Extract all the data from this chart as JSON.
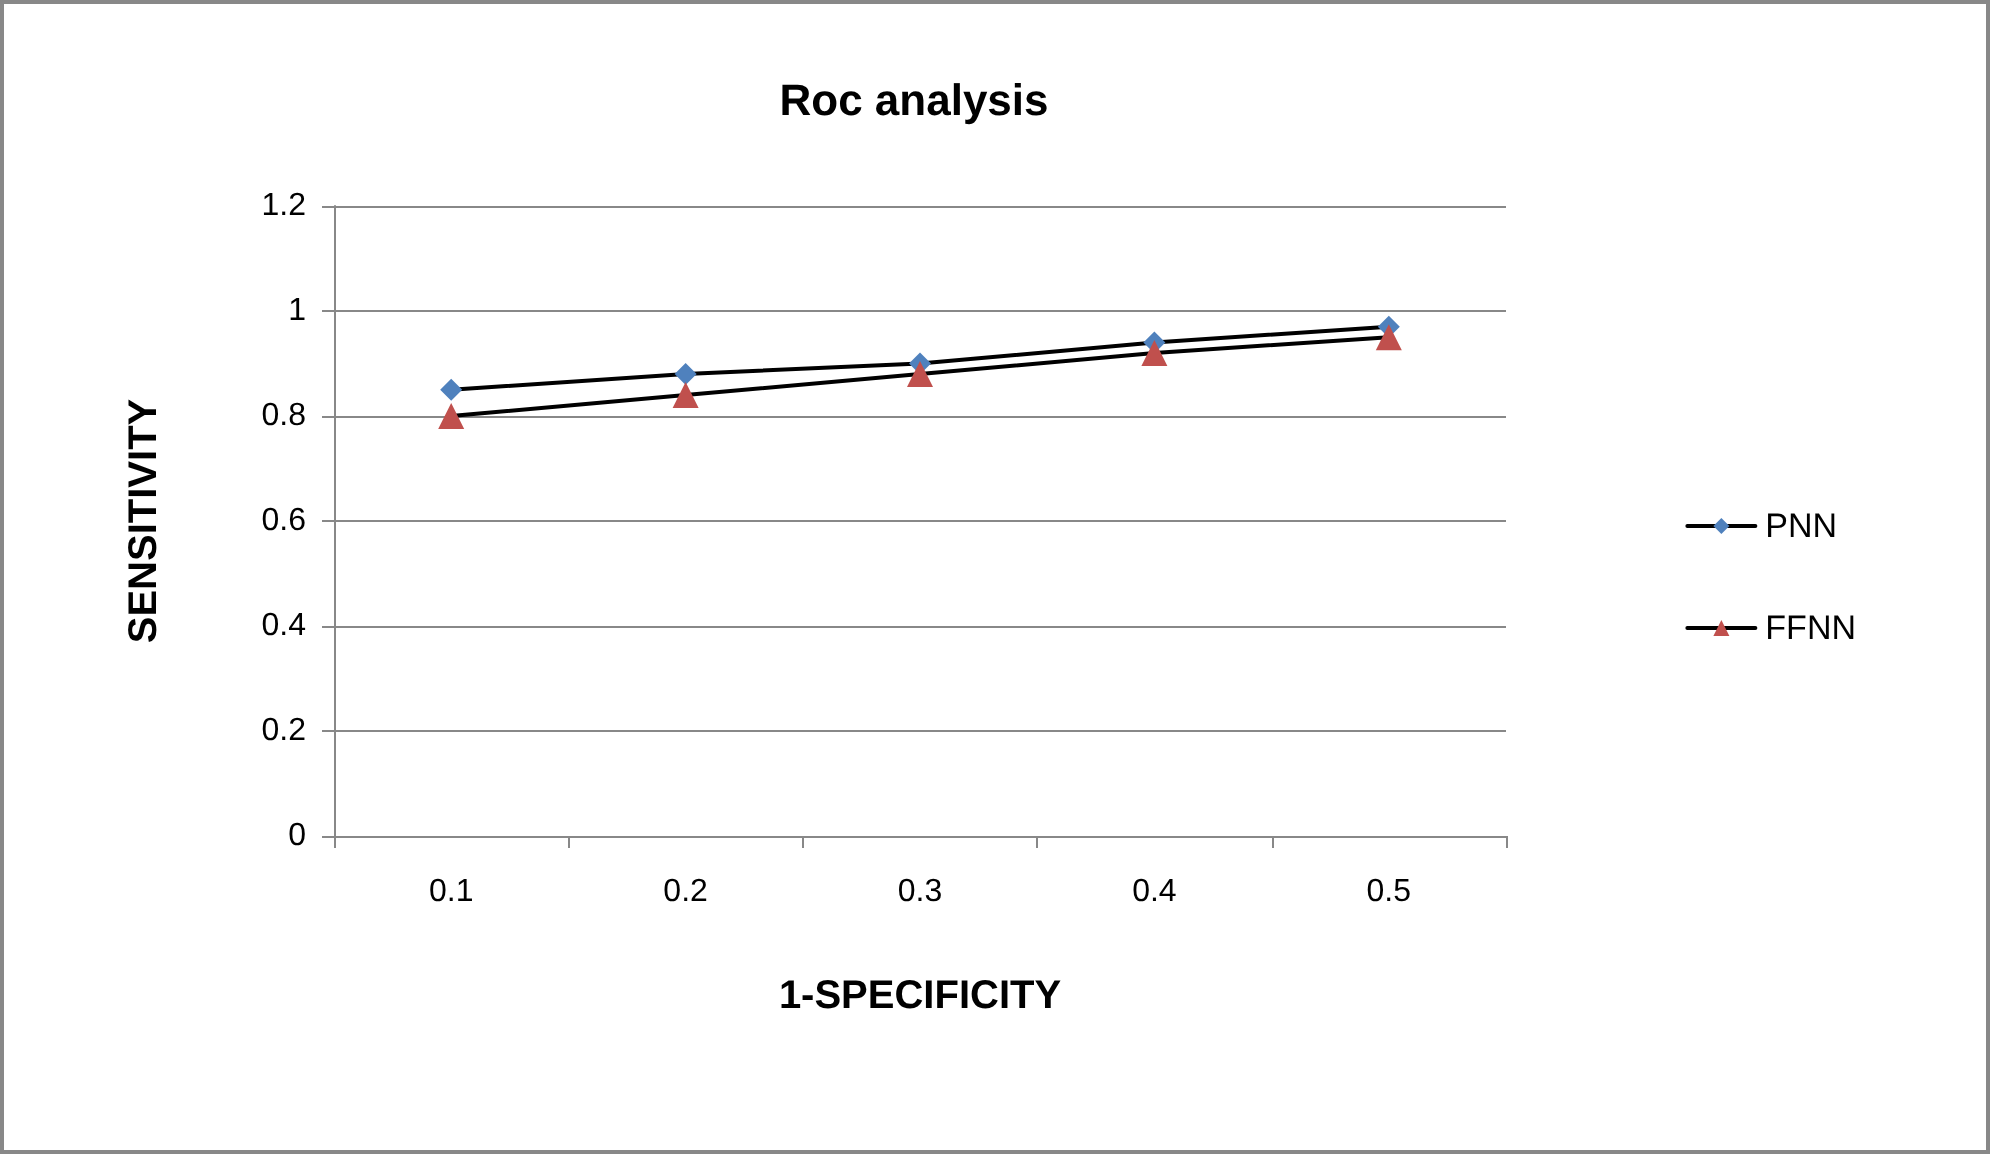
{
  "chart_data": {
    "type": "line",
    "title": "Roc analysis",
    "xlabel": "1-SPECIFICITY",
    "ylabel": "SENSITIVITY",
    "categories": [
      "0.1",
      "0.2",
      "0.3",
      "0.4",
      "0.5"
    ],
    "series": [
      {
        "name": "PNN",
        "color": "#4f81bd",
        "marker": "diamond",
        "values": [
          0.85,
          0.88,
          0.9,
          0.94,
          0.97
        ]
      },
      {
        "name": "FFNN",
        "color": "#c0504d",
        "marker": "triangle",
        "values": [
          0.8,
          0.84,
          0.88,
          0.92,
          0.95
        ]
      }
    ],
    "ylim": [
      0,
      1.2
    ],
    "yticks": [
      0,
      0.2,
      0.4,
      0.6,
      0.8,
      1,
      1.2
    ],
    "grid": "y",
    "legend": "right",
    "line_style": "solid"
  }
}
